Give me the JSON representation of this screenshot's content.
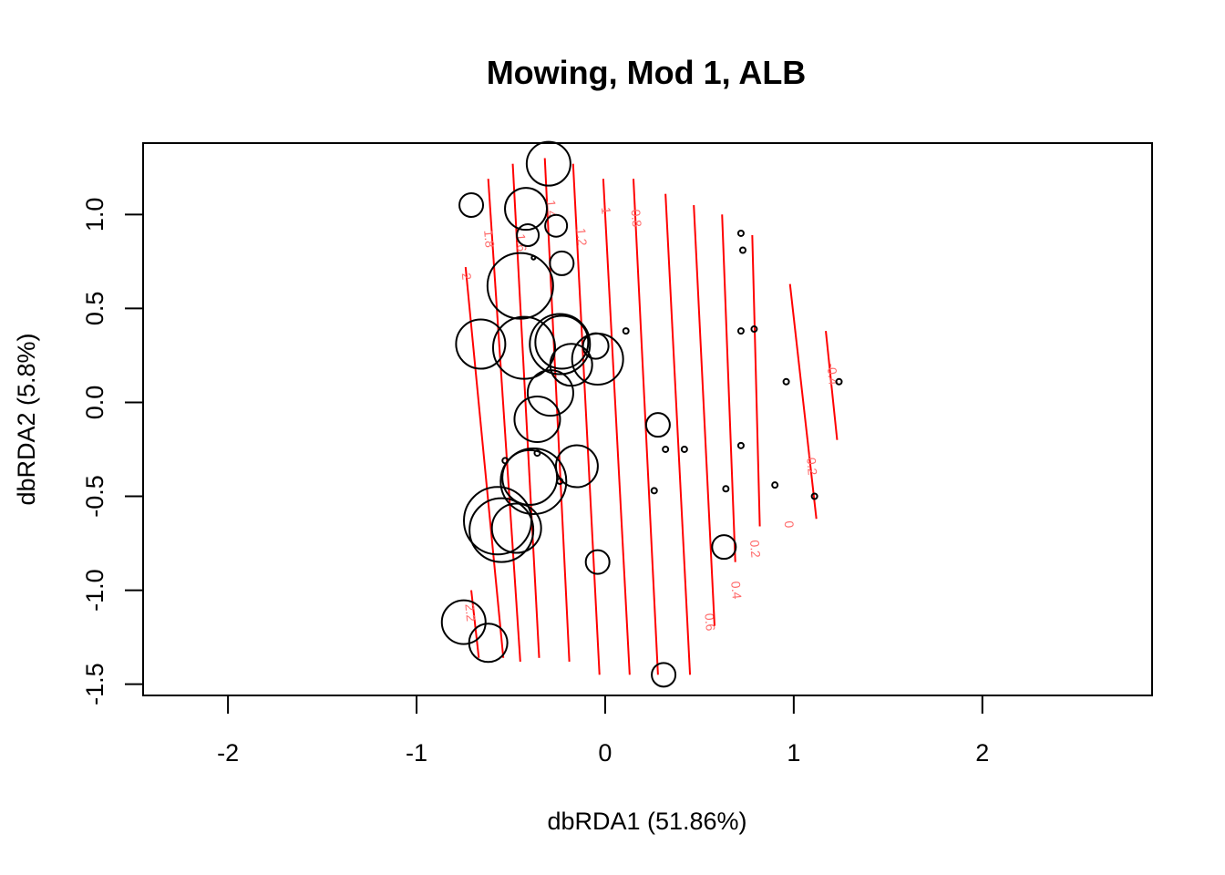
{
  "chart_data": {
    "type": "scatter",
    "title": "Mowing, Mod 1, ALB",
    "xlabel": "dbRDA1 (51.86%)",
    "ylabel": "dbRDA2 (5.8%)",
    "xlim": [
      -2.45,
      2.9
    ],
    "ylim": [
      -1.56,
      1.38
    ],
    "xticks": [
      -2,
      -1,
      0,
      1,
      2
    ],
    "xtick_labels": [
      "-2",
      "-1",
      "0",
      "1",
      "2"
    ],
    "yticks": [
      -1.5,
      -1.0,
      -0.5,
      0.0,
      0.5,
      1.0
    ],
    "ytick_labels": [
      "-1.5",
      "-1.0",
      "-0.5",
      "0.0",
      "0.5",
      "1.0"
    ],
    "grid": false,
    "legend": "none",
    "colors": {
      "points": "#000000",
      "contours": "#ff0000",
      "contour_labels": "#ff6b6b"
    },
    "point_size_note": "circle radius proportional to response value",
    "points": [
      {
        "x": -0.3,
        "y": 1.27,
        "size": 24
      },
      {
        "x": -0.71,
        "y": 1.05,
        "size": 13
      },
      {
        "x": -0.42,
        "y": 1.03,
        "size": 23
      },
      {
        "x": -0.26,
        "y": 0.94,
        "size": 12
      },
      {
        "x": -0.41,
        "y": 0.89,
        "size": 12
      },
      {
        "x": -0.38,
        "y": 0.77,
        "size": 2
      },
      {
        "x": -0.23,
        "y": 0.74,
        "size": 13
      },
      {
        "x": -0.45,
        "y": 0.62,
        "size": 36
      },
      {
        "x": -0.66,
        "y": 0.31,
        "size": 27
      },
      {
        "x": -0.43,
        "y": 0.29,
        "size": 34
      },
      {
        "x": -0.24,
        "y": 0.31,
        "size": 33
      },
      {
        "x": -0.23,
        "y": 0.32,
        "size": 29
      },
      {
        "x": -0.18,
        "y": 0.2,
        "size": 23
      },
      {
        "x": -0.05,
        "y": 0.3,
        "size": 14
      },
      {
        "x": -0.04,
        "y": 0.23,
        "size": 28
      },
      {
        "x": 0.11,
        "y": 0.38,
        "size": 3
      },
      {
        "x": -0.29,
        "y": 0.05,
        "size": 25
      },
      {
        "x": -0.36,
        "y": -0.09,
        "size": 25
      },
      {
        "x": 0.72,
        "y": 0.9,
        "size": 3
      },
      {
        "x": 0.73,
        "y": 0.81,
        "size": 3
      },
      {
        "x": 0.72,
        "y": 0.38,
        "size": 3
      },
      {
        "x": 0.79,
        "y": 0.39,
        "size": 3
      },
      {
        "x": 0.96,
        "y": 0.11,
        "size": 3
      },
      {
        "x": 1.24,
        "y": 0.11,
        "size": 3
      },
      {
        "x": 0.28,
        "y": -0.12,
        "size": 13
      },
      {
        "x": 0.32,
        "y": -0.25,
        "size": 3
      },
      {
        "x": 0.42,
        "y": -0.25,
        "size": 3
      },
      {
        "x": 0.72,
        "y": -0.23,
        "size": 3
      },
      {
        "x": -0.53,
        "y": -0.31,
        "size": 3
      },
      {
        "x": -0.36,
        "y": -0.27,
        "size": 3
      },
      {
        "x": -0.15,
        "y": -0.34,
        "size": 23
      },
      {
        "x": -0.4,
        "y": -0.4,
        "size": 30
      },
      {
        "x": -0.38,
        "y": -0.42,
        "size": 36
      },
      {
        "x": -0.24,
        "y": -0.42,
        "size": 3
      },
      {
        "x": 0.26,
        "y": -0.47,
        "size": 3
      },
      {
        "x": 0.64,
        "y": -0.46,
        "size": 3
      },
      {
        "x": 0.9,
        "y": -0.44,
        "size": 3
      },
      {
        "x": 1.11,
        "y": -0.5,
        "size": 3
      },
      {
        "x": -0.57,
        "y": -0.63,
        "size": 37
      },
      {
        "x": -0.55,
        "y": -0.68,
        "size": 35
      },
      {
        "x": -0.47,
        "y": -0.67,
        "size": 27
      },
      {
        "x": 0.63,
        "y": -0.77,
        "size": 13
      },
      {
        "x": -0.04,
        "y": -0.85,
        "size": 13
      },
      {
        "x": -0.75,
        "y": -1.17,
        "size": 24
      },
      {
        "x": -0.62,
        "y": -1.28,
        "size": 21
      },
      {
        "x": 0.31,
        "y": -1.45,
        "size": 13
      }
    ],
    "contours": [
      {
        "label": "2.2",
        "x1": -0.71,
        "y1": -1.0,
        "x2": -0.67,
        "y2": -1.36,
        "lx": -0.72,
        "ly": -1.12
      },
      {
        "label": "2",
        "x1": -0.74,
        "y1": 0.72,
        "x2": -0.54,
        "y2": -1.36,
        "lx": -0.74,
        "ly": 0.67
      },
      {
        "label": "1.8",
        "x1": -0.62,
        "y1": 1.19,
        "x2": -0.45,
        "y2": -1.38,
        "lx": -0.62,
        "ly": 0.87
      },
      {
        "label": "1.6",
        "x1": -0.49,
        "y1": 1.27,
        "x2": -0.35,
        "y2": -1.36,
        "lx": -0.45,
        "ly": 0.85
      },
      {
        "label": "1.4",
        "x1": -0.32,
        "y1": 1.3,
        "x2": -0.19,
        "y2": -1.38,
        "lx": -0.29,
        "ly": 1.03
      },
      {
        "label": "1.2",
        "x1": -0.17,
        "y1": 1.27,
        "x2": -0.03,
        "y2": -1.45,
        "lx": -0.13,
        "ly": 0.88
      },
      {
        "label": "1",
        "x1": -0.01,
        "y1": 1.19,
        "x2": 0.13,
        "y2": -1.45,
        "lx": 0.0,
        "ly": 1.02
      },
      {
        "label": "0.8",
        "x1": 0.15,
        "y1": 1.19,
        "x2": 0.28,
        "y2": -1.45,
        "lx": 0.16,
        "ly": 0.98
      },
      {
        "label": "0.6",
        "x1": 0.32,
        "y1": 1.11,
        "x2": 0.45,
        "y2": -1.45,
        "lx": 0.55,
        "ly": -1.17
      },
      {
        "label": "0.4",
        "x1": 0.47,
        "y1": 1.05,
        "x2": 0.58,
        "y2": -1.19,
        "lx": 0.69,
        "ly": -1.0
      },
      {
        "label": "0.2",
        "x1": 0.62,
        "y1": 1.0,
        "x2": 0.69,
        "y2": -0.85,
        "lx": 0.79,
        "ly": -0.78
      },
      {
        "label": "0",
        "x1": 0.78,
        "y1": 0.89,
        "x2": 0.82,
        "y2": -0.66,
        "lx": 0.97,
        "ly": -0.65
      },
      {
        "label": "-0.2",
        "x1": 0.98,
        "y1": 0.63,
        "x2": 1.12,
        "y2": -0.62,
        "lx": 1.09,
        "ly": -0.33
      },
      {
        "label": "-0.4",
        "x1": 1.17,
        "y1": 0.38,
        "x2": 1.23,
        "y2": -0.2,
        "lx": 1.2,
        "ly": 0.15
      }
    ]
  }
}
